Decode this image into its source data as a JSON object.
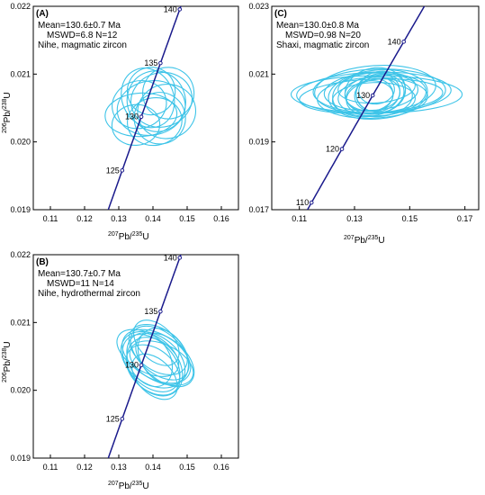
{
  "chart_data": [
    {
      "type": "scatter",
      "panel": "(A)",
      "info_lines": [
        "Mean=130.6±0.7 Ma",
        "MSWD=6.8  N=12",
        "Nihe, magmatic zircon"
      ],
      "xlabel": {
        "sup": "207",
        "base": "Pb/",
        "sup2": "235",
        "end": "U"
      },
      "ylabel": {
        "sup": "206",
        "base": "Pb/",
        "sup2": "238",
        "end": "U"
      },
      "xlim": [
        0.105,
        0.165
      ],
      "ylim": [
        0.019,
        0.022
      ],
      "xticks": [
        "0.11",
        "0.12",
        "0.13",
        "0.14",
        "0.15",
        "0.16"
      ],
      "yticks": [
        "0.019",
        "0.020",
        "0.021",
        "0.022"
      ],
      "concordia_ages": [
        "125",
        "130",
        "135",
        "140"
      ],
      "ellipses": [
        {
          "x": 0.1365,
          "y": 0.0204,
          "rx": 0.0105,
          "ry": 0.00032,
          "rot": 3
        },
        {
          "x": 0.1395,
          "y": 0.0205,
          "rx": 0.01,
          "ry": 0.0004,
          "rot": 10
        },
        {
          "x": 0.141,
          "y": 0.0206,
          "rx": 0.0085,
          "ry": 0.00045,
          "rot": 20
        },
        {
          "x": 0.1425,
          "y": 0.02062,
          "rx": 0.009,
          "ry": 0.0004,
          "rot": 15
        },
        {
          "x": 0.144,
          "y": 0.02045,
          "rx": 0.0085,
          "ry": 0.0004,
          "rot": 10
        },
        {
          "x": 0.1405,
          "y": 0.0203,
          "rx": 0.008,
          "ry": 0.00035,
          "rot": 10
        },
        {
          "x": 0.1385,
          "y": 0.02065,
          "rx": 0.0075,
          "ry": 0.00045,
          "rot": 25
        },
        {
          "x": 0.1445,
          "y": 0.02072,
          "rx": 0.0075,
          "ry": 0.00038,
          "rot": 8
        },
        {
          "x": 0.136,
          "y": 0.02055,
          "rx": 0.008,
          "ry": 0.00035,
          "rot": 15
        },
        {
          "x": 0.135,
          "y": 0.02025,
          "rx": 0.007,
          "ry": 0.0003,
          "rot": 5
        },
        {
          "x": 0.142,
          "y": 0.02035,
          "rx": 0.0075,
          "ry": 0.00038,
          "rot": 12
        },
        {
          "x": 0.1395,
          "y": 0.02075,
          "rx": 0.007,
          "ry": 0.00035,
          "rot": 20
        }
      ]
    },
    {
      "type": "scatter",
      "panel": "(B)",
      "info_lines": [
        "Mean=130.7±0.7 Ma",
        "MSWD=11  N=14",
        "Nihe, hydrothermal zircon"
      ],
      "xlabel": {
        "sup": "207",
        "base": "Pb/",
        "sup2": "235",
        "end": "U"
      },
      "ylabel": {
        "sup": "206",
        "base": "Pb/",
        "sup2": "238",
        "end": "U"
      },
      "xlim": [
        0.105,
        0.165
      ],
      "ylim": [
        0.019,
        0.022
      ],
      "xticks": [
        "0.11",
        "0.12",
        "0.13",
        "0.14",
        "0.15",
        "0.16"
      ],
      "yticks": [
        "0.019",
        "0.020",
        "0.021",
        "0.022"
      ],
      "concordia_ages": [
        "125",
        "130",
        "135",
        "140"
      ],
      "ellipses": [
        {
          "x": 0.14,
          "y": 0.02045,
          "rx": 0.007,
          "ry": 0.00052,
          "rot": 55
        },
        {
          "x": 0.141,
          "y": 0.0205,
          "rx": 0.0065,
          "ry": 0.00055,
          "rot": 60
        },
        {
          "x": 0.142,
          "y": 0.02055,
          "rx": 0.006,
          "ry": 0.0005,
          "rot": 50
        },
        {
          "x": 0.1395,
          "y": 0.0204,
          "rx": 0.0065,
          "ry": 0.0005,
          "rot": 45
        },
        {
          "x": 0.1405,
          "y": 0.02035,
          "rx": 0.007,
          "ry": 0.00048,
          "rot": 40
        },
        {
          "x": 0.143,
          "y": 0.0205,
          "rx": 0.0065,
          "ry": 0.00045,
          "rot": 35
        },
        {
          "x": 0.1385,
          "y": 0.02055,
          "rx": 0.0055,
          "ry": 0.0005,
          "rot": 60
        },
        {
          "x": 0.1415,
          "y": 0.0206,
          "rx": 0.006,
          "ry": 0.00048,
          "rot": 55
        },
        {
          "x": 0.14,
          "y": 0.0203,
          "rx": 0.006,
          "ry": 0.00045,
          "rot": 50
        },
        {
          "x": 0.1425,
          "y": 0.0204,
          "rx": 0.0055,
          "ry": 0.0005,
          "rot": 65
        },
        {
          "x": 0.139,
          "y": 0.02045,
          "rx": 0.006,
          "ry": 0.00042,
          "rot": 30
        },
        {
          "x": 0.1435,
          "y": 0.02045,
          "rx": 0.006,
          "ry": 0.0005,
          "rot": 50
        },
        {
          "x": 0.141,
          "y": 0.0207,
          "rx": 0.005,
          "ry": 0.0004,
          "rot": 45
        },
        {
          "x": 0.1405,
          "y": 0.0202,
          "rx": 0.005,
          "ry": 0.0004,
          "rot": 45
        }
      ]
    },
    {
      "type": "scatter",
      "panel": "(C)",
      "info_lines": [
        "Mean=130.0±0.8 Ma",
        "MSWD=0.98  N=20",
        "Shaxi, magmatic zircon"
      ],
      "xlabel": {
        "sup": "207",
        "base": "Pb/",
        "sup2": "235",
        "end": "U"
      },
      "ylabel": {
        "sup": "",
        "base": "",
        "sup2": "",
        "end": ""
      },
      "xlim": [
        0.1,
        0.175
      ],
      "ylim": [
        0.017,
        0.023
      ],
      "xticks": [
        "0.11",
        "0.13",
        "0.15",
        "0.17"
      ],
      "yticks": [
        "0.017",
        "0.019",
        "0.021",
        "0.023"
      ],
      "concordia_ages": [
        "110",
        "120",
        "130",
        "140"
      ],
      "ellipses": [
        {
          "x": 0.138,
          "y": 0.0204,
          "rx": 0.031,
          "ry": 0.00055,
          "rot": 0
        },
        {
          "x": 0.137,
          "y": 0.02045,
          "rx": 0.028,
          "ry": 0.0006,
          "rot": 2
        },
        {
          "x": 0.136,
          "y": 0.02035,
          "rx": 0.026,
          "ry": 0.0005,
          "rot": 3
        },
        {
          "x": 0.139,
          "y": 0.0205,
          "rx": 0.024,
          "ry": 0.00065,
          "rot": 1
        },
        {
          "x": 0.1375,
          "y": 0.02055,
          "rx": 0.022,
          "ry": 0.0007,
          "rot": 4
        },
        {
          "x": 0.1365,
          "y": 0.0203,
          "rx": 0.02,
          "ry": 0.0006,
          "rot": 2
        },
        {
          "x": 0.1385,
          "y": 0.0204,
          "rx": 0.018,
          "ry": 0.00072,
          "rot": 5
        },
        {
          "x": 0.136,
          "y": 0.02048,
          "rx": 0.017,
          "ry": 0.00055,
          "rot": 3
        },
        {
          "x": 0.14,
          "y": 0.02038,
          "rx": 0.016,
          "ry": 0.0006,
          "rot": 6
        },
        {
          "x": 0.137,
          "y": 0.02025,
          "rx": 0.015,
          "ry": 0.0005,
          "rot": 2
        },
        {
          "x": 0.138,
          "y": 0.0206,
          "rx": 0.014,
          "ry": 0.00045,
          "rot": 4
        },
        {
          "x": 0.135,
          "y": 0.0204,
          "rx": 0.013,
          "ry": 0.00065,
          "rot": 8
        },
        {
          "x": 0.139,
          "y": 0.0203,
          "rx": 0.012,
          "ry": 0.00055,
          "rot": 6
        },
        {
          "x": 0.1375,
          "y": 0.0205,
          "rx": 0.011,
          "ry": 0.00068,
          "rot": 10
        },
        {
          "x": 0.1365,
          "y": 0.02042,
          "rx": 0.01,
          "ry": 0.0005,
          "rot": 5
        },
        {
          "x": 0.1395,
          "y": 0.02048,
          "rx": 0.009,
          "ry": 0.0006,
          "rot": 12
        },
        {
          "x": 0.1355,
          "y": 0.02035,
          "rx": 0.0085,
          "ry": 0.00045,
          "rot": 6
        },
        {
          "x": 0.1385,
          "y": 0.02045,
          "rx": 0.008,
          "ry": 0.00055,
          "rot": 15
        },
        {
          "x": 0.137,
          "y": 0.02038,
          "rx": 0.007,
          "ry": 0.00048,
          "rot": 10
        },
        {
          "x": 0.138,
          "y": 0.02052,
          "rx": 0.0065,
          "ry": 0.0004,
          "rot": 8
        }
      ]
    }
  ],
  "colors": {
    "ellipse": "#3ec4e8",
    "concordia": "#1a1a8c",
    "axis": "#000000"
  }
}
